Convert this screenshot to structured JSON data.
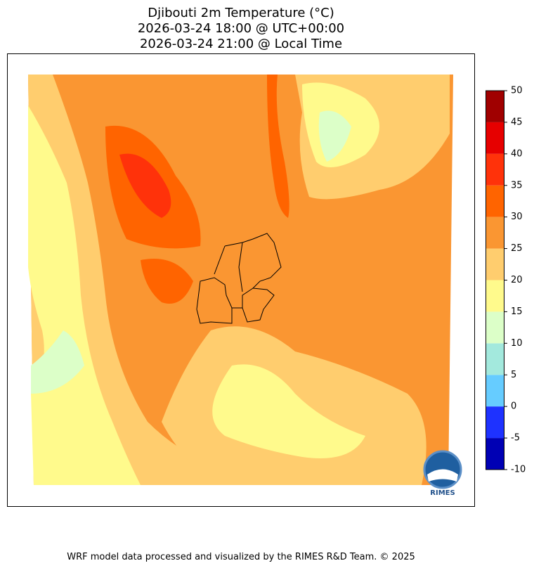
{
  "title": [
    "Djibouti 2m Temperature (°C)",
    "2026-03-24 18:00 @ UTC+00:00",
    "2026-03-24 21:00 @ Local Time"
  ],
  "colorbar": {
    "ticks": [
      -10,
      -5,
      0,
      5,
      10,
      15,
      20,
      25,
      30,
      35,
      40,
      45,
      50
    ],
    "colors": [
      "#0000b4",
      "#1e32ff",
      "#66ccff",
      "#a3e9dd",
      "#dcffc8",
      "#fffa8c",
      "#ffcd6e",
      "#fa9632",
      "#ff6400",
      "#ff320a",
      "#e60000",
      "#a00000"
    ]
  },
  "logo_text": "RIMES",
  "footer": "WRF model data processed and visualized by the RIMES R&D Team. © 2025"
}
